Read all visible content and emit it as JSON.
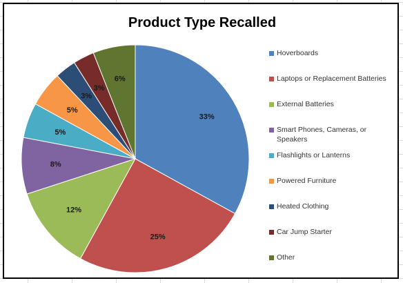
{
  "chart_data": {
    "type": "pie",
    "title": "Product Type Recalled",
    "categories": [
      "Hoverboards",
      "Laptops or Replacement Batteries",
      "External Batteries",
      "Smart Phones, Cameras, or Speakers",
      "Flashlights or Lanterns",
      "Powered Furniture",
      "Heated Clothing",
      "Car Jump Starter",
      "Other"
    ],
    "values": [
      33,
      25,
      12,
      8,
      5,
      5,
      3,
      3,
      6
    ],
    "data_labels": [
      "33%",
      "25%",
      "12%",
      "8%",
      "5%",
      "5%",
      "3%",
      "3%",
      "6%"
    ],
    "colors": [
      "#4f81bd",
      "#c0504d",
      "#9bbb59",
      "#8064a2",
      "#4bacc6",
      "#f79646",
      "#2c4d75",
      "#772c2a",
      "#5f7530"
    ],
    "legend_position": "right",
    "grid": false
  }
}
